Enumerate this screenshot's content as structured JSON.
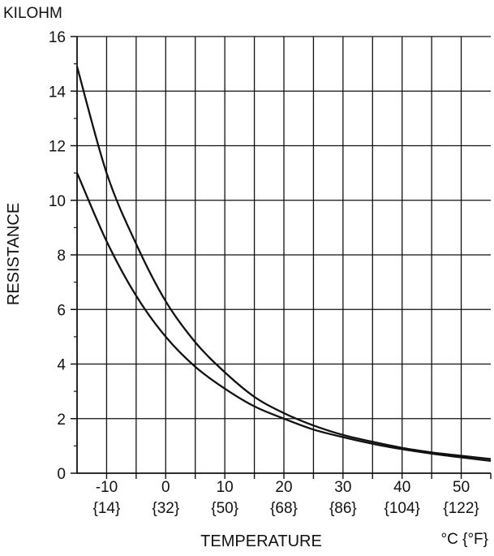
{
  "chart_data": {
    "type": "line",
    "y_unit_label": "KILOHM",
    "ylabel": "RESISTANCE",
    "xlabel": "TEMPERATURE",
    "x_unit_label": "°C {°F}",
    "xlim": [
      -15,
      55
    ],
    "ylim": [
      0,
      16
    ],
    "grid": true,
    "x_ticks": [
      -10,
      0,
      10,
      20,
      30,
      40,
      50
    ],
    "x_tick_labels": [
      "-10",
      "0",
      "10",
      "20",
      "30",
      "40",
      "50"
    ],
    "x_tick_labels_f": [
      "{14}",
      "{32}",
      "{50}",
      "{68}",
      "{86}",
      "{104}",
      "{122}"
    ],
    "y_ticks": [
      0,
      2,
      4,
      6,
      8,
      10,
      12,
      14,
      16
    ],
    "y_tick_labels": [
      "0",
      "2",
      "4",
      "6",
      "8",
      "10",
      "12",
      "14",
      "16"
    ],
    "series": [
      {
        "x": [
          -15,
          -10,
          -5,
          0,
          5,
          10,
          15,
          20,
          25,
          30,
          35,
          40,
          45,
          50,
          55
        ],
        "values": [
          14.9,
          11.0,
          8.4,
          6.3,
          4.8,
          3.7,
          2.8,
          2.2,
          1.75,
          1.4,
          1.15,
          0.93,
          0.76,
          0.64,
          0.52
        ]
      },
      {
        "x": [
          -15,
          -10,
          -5,
          0,
          5,
          10,
          15,
          20,
          25,
          30,
          35,
          40,
          45,
          50,
          55
        ],
        "values": [
          11.0,
          8.5,
          6.5,
          5.0,
          3.9,
          3.1,
          2.45,
          2.0,
          1.6,
          1.32,
          1.08,
          0.88,
          0.72,
          0.58,
          0.45
        ]
      }
    ]
  }
}
